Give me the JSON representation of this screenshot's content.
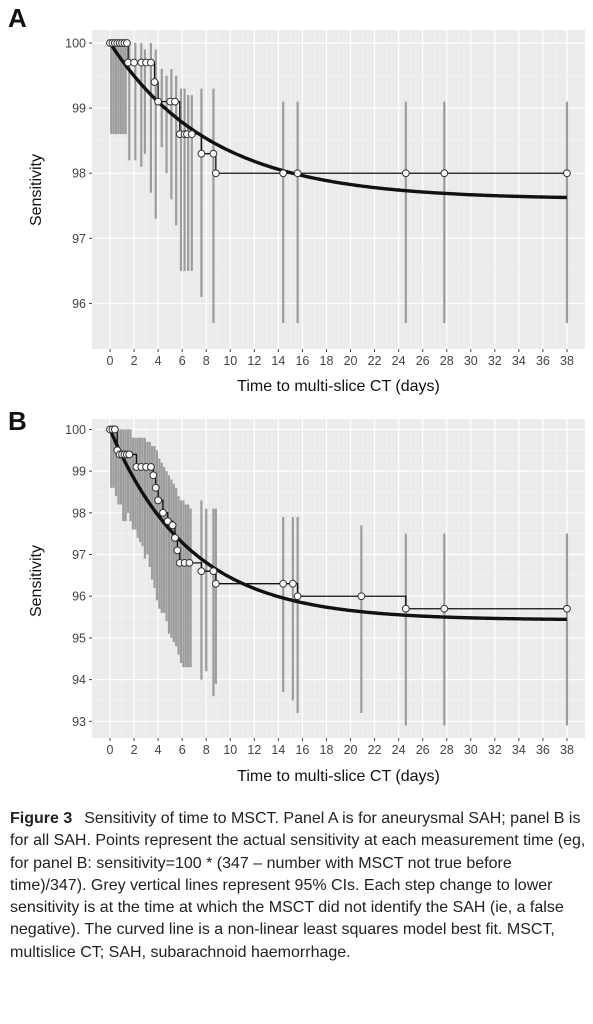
{
  "caption": {
    "label": "Figure 3",
    "text": "Sensitivity of time to MSCT. Panel A is for aneurysmal SAH; panel B is for all SAH. Points represent the actual sensitivity at each measurement time (eg, for panel B: sensitivity=100 * (347 – number with MSCT not true before time)/347). Grey vertical lines represent 95% CIs. Each step change to lower sensitivity is at the time at which the MSCT did not identify the SAH (ie, a false negative). The curved line is a non-linear least squares model best fit. MSCT, multislice CT; SAH, subarachnoid haemorrhage."
  },
  "chart_data": [
    {
      "panel": "A",
      "type": "line",
      "xlabel": "Time to multi-slice CT (days)",
      "ylabel": "Sensitivity",
      "xlim": [
        -1.5,
        39.5
      ],
      "ylim": [
        95.3,
        100.2
      ],
      "xticks": [
        0,
        2,
        4,
        6,
        8,
        10,
        12,
        14,
        16,
        18,
        20,
        22,
        24,
        26,
        28,
        30,
        32,
        34,
        36,
        38
      ],
      "yticks": [
        96,
        97,
        98,
        99,
        100
      ],
      "grid": true,
      "points": [
        {
          "x": 0.0,
          "y": 100.0
        },
        {
          "x": 0.2,
          "y": 100.0
        },
        {
          "x": 0.4,
          "y": 100.0
        },
        {
          "x": 0.6,
          "y": 100.0
        },
        {
          "x": 0.8,
          "y": 100.0
        },
        {
          "x": 1.0,
          "y": 100.0
        },
        {
          "x": 1.2,
          "y": 100.0
        },
        {
          "x": 1.4,
          "y": 100.0
        },
        {
          "x": 1.5,
          "y": 99.7
        },
        {
          "x": 2.0,
          "y": 99.7
        },
        {
          "x": 2.6,
          "y": 99.7
        },
        {
          "x": 3.0,
          "y": 99.7
        },
        {
          "x": 3.4,
          "y": 99.7
        },
        {
          "x": 3.7,
          "y": 99.4
        },
        {
          "x": 4.0,
          "y": 99.1
        },
        {
          "x": 5.0,
          "y": 99.1
        },
        {
          "x": 5.4,
          "y": 99.1
        },
        {
          "x": 5.8,
          "y": 98.6
        },
        {
          "x": 6.2,
          "y": 98.6
        },
        {
          "x": 6.4,
          "y": 98.6
        },
        {
          "x": 6.8,
          "y": 98.6
        },
        {
          "x": 7.6,
          "y": 98.3
        },
        {
          "x": 8.6,
          "y": 98.3
        },
        {
          "x": 8.8,
          "y": 98.0
        },
        {
          "x": 14.4,
          "y": 98.0
        },
        {
          "x": 15.6,
          "y": 98.0
        },
        {
          "x": 24.6,
          "y": 98.0
        },
        {
          "x": 27.8,
          "y": 98.0
        },
        {
          "x": 38.0,
          "y": 98.0
        }
      ],
      "ci": [
        {
          "x": 0.1,
          "low": 98.6,
          "high": 100.0
        },
        {
          "x": 0.3,
          "low": 98.6,
          "high": 100.0
        },
        {
          "x": 0.5,
          "low": 98.6,
          "high": 100.0
        },
        {
          "x": 0.7,
          "low": 98.6,
          "high": 100.0
        },
        {
          "x": 0.9,
          "low": 98.6,
          "high": 100.0
        },
        {
          "x": 1.1,
          "low": 98.6,
          "high": 100.0
        },
        {
          "x": 1.3,
          "low": 98.6,
          "high": 100.0
        },
        {
          "x": 1.6,
          "low": 98.2,
          "high": 100.0
        },
        {
          "x": 2.1,
          "low": 98.2,
          "high": 100.0
        },
        {
          "x": 2.6,
          "low": 98.1,
          "high": 100.0
        },
        {
          "x": 2.9,
          "low": 98.3,
          "high": 99.9
        },
        {
          "x": 3.4,
          "low": 97.7,
          "high": 100.0
        },
        {
          "x": 3.8,
          "low": 97.3,
          "high": 99.9
        },
        {
          "x": 4.3,
          "low": 98.4,
          "high": 99.6
        },
        {
          "x": 4.7,
          "low": 98.0,
          "high": 99.5
        },
        {
          "x": 5.1,
          "low": 97.6,
          "high": 99.6
        },
        {
          "x": 5.5,
          "low": 97.2,
          "high": 99.5
        },
        {
          "x": 5.9,
          "low": 96.5,
          "high": 99.3
        },
        {
          "x": 6.2,
          "low": 96.5,
          "high": 99.3
        },
        {
          "x": 6.5,
          "low": 96.5,
          "high": 99.2
        },
        {
          "x": 6.8,
          "low": 96.5,
          "high": 99.2
        },
        {
          "x": 7.6,
          "low": 96.1,
          "high": 99.3
        },
        {
          "x": 8.6,
          "low": 95.7,
          "high": 99.3
        },
        {
          "x": 14.4,
          "low": 95.7,
          "high": 99.1
        },
        {
          "x": 15.6,
          "low": 95.7,
          "high": 99.1
        },
        {
          "x": 24.6,
          "low": 95.7,
          "high": 99.1
        },
        {
          "x": 27.8,
          "low": 95.7,
          "high": 99.1
        },
        {
          "x": 38.0,
          "low": 95.7,
          "high": 99.1
        }
      ],
      "fit": {
        "asymptote": 97.6,
        "span": 2.4,
        "rate": 0.118
      }
    },
    {
      "panel": "B",
      "type": "line",
      "xlabel": "Time to multi-slice CT (days)",
      "ylabel": "Sensitivity",
      "xlim": [
        -1.5,
        39.5
      ],
      "ylim": [
        92.6,
        100.25
      ],
      "xticks": [
        0,
        2,
        4,
        6,
        8,
        10,
        12,
        14,
        16,
        18,
        20,
        22,
        24,
        26,
        28,
        30,
        32,
        34,
        36,
        38
      ],
      "yticks": [
        93,
        94,
        95,
        96,
        97,
        98,
        99,
        100
      ],
      "grid": true,
      "points": [
        {
          "x": 0.0,
          "y": 100.0
        },
        {
          "x": 0.2,
          "y": 100.0
        },
        {
          "x": 0.4,
          "y": 100.0
        },
        {
          "x": 0.6,
          "y": 99.5
        },
        {
          "x": 0.8,
          "y": 99.4
        },
        {
          "x": 1.0,
          "y": 99.4
        },
        {
          "x": 1.2,
          "y": 99.4
        },
        {
          "x": 1.4,
          "y": 99.4
        },
        {
          "x": 1.6,
          "y": 99.4
        },
        {
          "x": 2.2,
          "y": 99.1
        },
        {
          "x": 2.6,
          "y": 99.1
        },
        {
          "x": 3.0,
          "y": 99.1
        },
        {
          "x": 3.4,
          "y": 99.1
        },
        {
          "x": 3.6,
          "y": 98.9
        },
        {
          "x": 3.8,
          "y": 98.6
        },
        {
          "x": 4.0,
          "y": 98.3
        },
        {
          "x": 4.4,
          "y": 98.0
        },
        {
          "x": 4.8,
          "y": 97.8
        },
        {
          "x": 5.2,
          "y": 97.7
        },
        {
          "x": 5.4,
          "y": 97.4
        },
        {
          "x": 5.6,
          "y": 97.1
        },
        {
          "x": 5.8,
          "y": 96.8
        },
        {
          "x": 6.2,
          "y": 96.8
        },
        {
          "x": 6.6,
          "y": 96.8
        },
        {
          "x": 7.6,
          "y": 96.6
        },
        {
          "x": 8.6,
          "y": 96.6
        },
        {
          "x": 8.8,
          "y": 96.3
        },
        {
          "x": 14.4,
          "y": 96.3
        },
        {
          "x": 15.2,
          "y": 96.3
        },
        {
          "x": 15.6,
          "y": 96.0
        },
        {
          "x": 20.9,
          "y": 96.0
        },
        {
          "x": 24.6,
          "y": 95.7
        },
        {
          "x": 27.8,
          "y": 95.7
        },
        {
          "x": 38.0,
          "y": 95.7
        }
      ],
      "ci": [
        {
          "x": 0.1,
          "low": 98.6,
          "high": 100.0
        },
        {
          "x": 0.3,
          "low": 98.6,
          "high": 100.0
        },
        {
          "x": 0.5,
          "low": 98.4,
          "high": 100.0
        },
        {
          "x": 0.7,
          "low": 98.2,
          "high": 100.0
        },
        {
          "x": 0.9,
          "low": 98.2,
          "high": 100.0
        },
        {
          "x": 1.1,
          "low": 97.8,
          "high": 100.0
        },
        {
          "x": 1.3,
          "low": 97.8,
          "high": 100.0
        },
        {
          "x": 1.5,
          "low": 98.0,
          "high": 100.0
        },
        {
          "x": 1.7,
          "low": 97.8,
          "high": 100.0
        },
        {
          "x": 1.9,
          "low": 97.6,
          "high": 99.8
        },
        {
          "x": 2.1,
          "low": 97.6,
          "high": 99.8
        },
        {
          "x": 2.3,
          "low": 97.4,
          "high": 99.8
        },
        {
          "x": 2.5,
          "low": 97.3,
          "high": 99.8
        },
        {
          "x": 2.7,
          "low": 97.2,
          "high": 99.8
        },
        {
          "x": 2.9,
          "low": 96.9,
          "high": 99.8
        },
        {
          "x": 3.1,
          "low": 97.0,
          "high": 99.7
        },
        {
          "x": 3.3,
          "low": 96.7,
          "high": 99.7
        },
        {
          "x": 3.5,
          "low": 96.4,
          "high": 99.6
        },
        {
          "x": 3.7,
          "low": 96.2,
          "high": 99.6
        },
        {
          "x": 3.9,
          "low": 95.9,
          "high": 99.5
        },
        {
          "x": 4.1,
          "low": 95.7,
          "high": 99.3
        },
        {
          "x": 4.3,
          "low": 95.6,
          "high": 99.2
        },
        {
          "x": 4.5,
          "low": 95.6,
          "high": 99.1
        },
        {
          "x": 4.7,
          "low": 95.4,
          "high": 99.0
        },
        {
          "x": 4.9,
          "low": 95.1,
          "high": 98.9
        },
        {
          "x": 5.1,
          "low": 95.0,
          "high": 98.8
        },
        {
          "x": 5.3,
          "low": 94.9,
          "high": 98.7
        },
        {
          "x": 5.5,
          "low": 94.8,
          "high": 98.6
        },
        {
          "x": 5.7,
          "low": 94.6,
          "high": 98.4
        },
        {
          "x": 5.9,
          "low": 94.4,
          "high": 98.3
        },
        {
          "x": 6.1,
          "low": 94.3,
          "high": 98.3
        },
        {
          "x": 6.3,
          "low": 94.3,
          "high": 98.2
        },
        {
          "x": 6.5,
          "low": 94.3,
          "high": 98.2
        },
        {
          "x": 6.7,
          "low": 94.3,
          "high": 98.1
        },
        {
          "x": 7.6,
          "low": 94.0,
          "high": 98.3
        },
        {
          "x": 8.0,
          "low": 94.2,
          "high": 98.1
        },
        {
          "x": 8.6,
          "low": 93.6,
          "high": 98.1
        },
        {
          "x": 8.8,
          "low": 93.9,
          "high": 98.1
        },
        {
          "x": 14.4,
          "low": 93.7,
          "high": 97.9
        },
        {
          "x": 15.2,
          "low": 93.5,
          "high": 97.9
        },
        {
          "x": 15.6,
          "low": 93.2,
          "high": 97.9
        },
        {
          "x": 20.9,
          "low": 93.2,
          "high": 97.7
        },
        {
          "x": 24.6,
          "low": 92.9,
          "high": 97.5
        },
        {
          "x": 27.8,
          "low": 92.9,
          "high": 97.5
        },
        {
          "x": 38.0,
          "low": 92.9,
          "high": 97.5
        }
      ],
      "fit": {
        "asymptote": 95.43,
        "span": 4.57,
        "rate": 0.15
      }
    }
  ]
}
